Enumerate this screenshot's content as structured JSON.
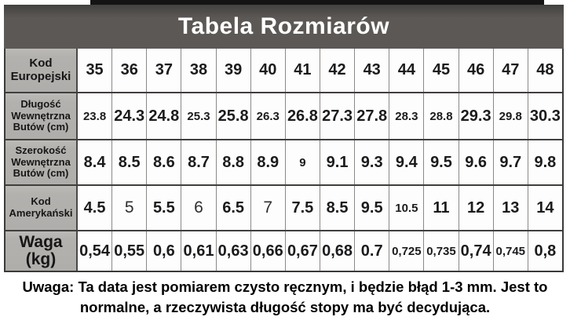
{
  "header": {
    "title": "Tabela Rozmiarów"
  },
  "chart_data": {
    "type": "table",
    "title": "Tabela Rozmiarów",
    "rows": [
      {
        "label": "Kod Europejski",
        "label_size": "md",
        "values": [
          "35",
          "36",
          "37",
          "38",
          "39",
          "40",
          "41",
          "42",
          "43",
          "44",
          "45",
          "46",
          "47",
          "48"
        ],
        "styles": [
          "n",
          "n",
          "n",
          "n",
          "n",
          "n",
          "n",
          "n",
          "n",
          "n",
          "n",
          "n",
          "n",
          "n"
        ]
      },
      {
        "label": "Długość Wewnętrzna Butów (cm)",
        "label_size": "sm",
        "values": [
          "23.8",
          "24.3",
          "24.8",
          "25.3",
          "25.8",
          "26.3",
          "26.8",
          "27.3",
          "27.8",
          "28.3",
          "28.8",
          "29.3",
          "29.8",
          "30.3"
        ],
        "styles": [
          "s",
          "n",
          "n",
          "s",
          "n",
          "s",
          "n",
          "n",
          "n",
          "s",
          "s",
          "n",
          "s",
          "n"
        ]
      },
      {
        "label": "Szerokość Wewnętrzna Butów (cm)",
        "label_size": "sm",
        "values": [
          "8.4",
          "8.5",
          "8.6",
          "8.7",
          "8.8",
          "8.9",
          "9",
          "9.1",
          "9.3",
          "9.4",
          "9.5",
          "9.6",
          "9.7",
          "9.8"
        ],
        "styles": [
          "n",
          "n",
          "n",
          "n",
          "n",
          "n",
          "s",
          "n",
          "n",
          "n",
          "n",
          "n",
          "n",
          "n"
        ]
      },
      {
        "label": "Kod Amerykański",
        "label_size": "sm",
        "values": [
          "4.5",
          "5",
          "5.5",
          "6",
          "6.5",
          "7",
          "7.5",
          "8.5",
          "9.5",
          "10.5",
          "11",
          "12",
          "13",
          "14"
        ],
        "styles": [
          "n",
          "l",
          "n",
          "l",
          "n",
          "l",
          "n",
          "n",
          "n",
          "s",
          "n",
          "n",
          "n",
          "n"
        ]
      },
      {
        "label": "Waga (kg)",
        "label_size": "lg",
        "values": [
          "0,54",
          "0,55",
          "0,6",
          "0,61",
          "0,63",
          "0,66",
          "0,67",
          "0,68",
          "0.7",
          "0,725",
          "0,735",
          "0,74",
          "0,745",
          "0,8"
        ],
        "styles": [
          "n",
          "n",
          "n",
          "n",
          "n",
          "n",
          "n",
          "n",
          "n",
          "s",
          "s",
          "n",
          "s",
          "n"
        ]
      }
    ]
  },
  "note": {
    "line1": "Uwaga: Ta data jest pomiarem czysto ręcznym, i będzie błąd 1-3 mm. Jest to",
    "line2": "normalne, a rzeczywista długość stopy ma być decydująca."
  },
  "colors": {
    "banner_bg": "#5b5855",
    "label_bg": "#b3b1ae",
    "border_dark": "#3b3a39",
    "border_light": "#8b8987",
    "text": "#1b1b1d"
  }
}
